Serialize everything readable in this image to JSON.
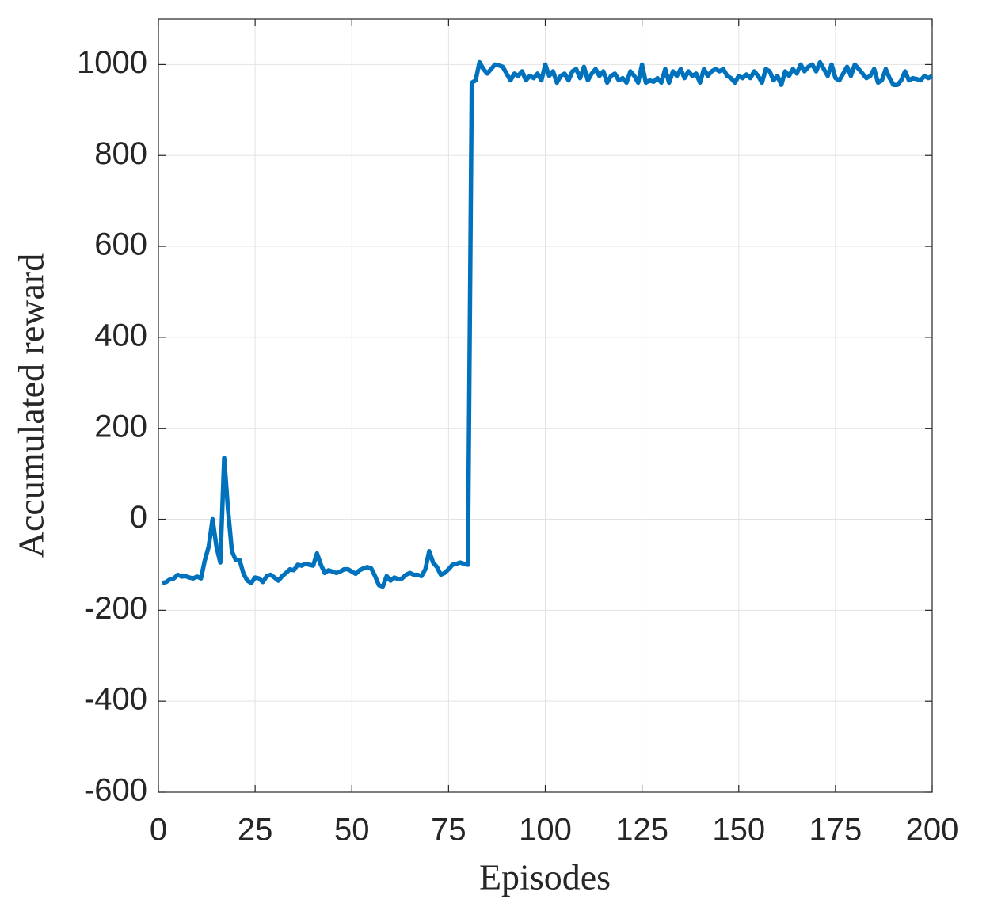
{
  "chart_data": {
    "type": "line",
    "xlabel": "Episodes",
    "ylabel": "Accumulated reward",
    "color": "#0072bd",
    "grid": true,
    "xlim": [
      0,
      200
    ],
    "xticks": [
      0,
      25,
      50,
      75,
      100,
      125,
      150,
      175,
      200
    ],
    "ylim": [
      -600,
      1100
    ],
    "yticks": [
      -600,
      -400,
      -200,
      0,
      200,
      400,
      600,
      800,
      1000
    ],
    "x": [
      1,
      2,
      3,
      4,
      5,
      6,
      7,
      8,
      9,
      10,
      11,
      12,
      13,
      14,
      15,
      16,
      17,
      18,
      19,
      20,
      21,
      22,
      23,
      24,
      25,
      26,
      27,
      28,
      29,
      30,
      31,
      32,
      33,
      34,
      35,
      36,
      37,
      38,
      39,
      40,
      41,
      42,
      43,
      44,
      45,
      46,
      47,
      48,
      49,
      50,
      51,
      52,
      53,
      54,
      55,
      56,
      57,
      58,
      59,
      60,
      61,
      62,
      63,
      64,
      65,
      66,
      67,
      68,
      69,
      70,
      71,
      72,
      73,
      74,
      75,
      76,
      77,
      78,
      79,
      80,
      81,
      82,
      83,
      84,
      85,
      86,
      87,
      88,
      89,
      90,
      91,
      92,
      93,
      94,
      95,
      96,
      97,
      98,
      99,
      100,
      101,
      102,
      103,
      104,
      105,
      106,
      107,
      108,
      109,
      110,
      111,
      112,
      113,
      114,
      115,
      116,
      117,
      118,
      119,
      120,
      121,
      122,
      123,
      124,
      125,
      126,
      127,
      128,
      129,
      130,
      131,
      132,
      133,
      134,
      135,
      136,
      137,
      138,
      139,
      140,
      141,
      142,
      143,
      144,
      145,
      146,
      147,
      148,
      149,
      150,
      151,
      152,
      153,
      154,
      155,
      156,
      157,
      158,
      159,
      160,
      161,
      162,
      163,
      164,
      165,
      166,
      167,
      168,
      169,
      170,
      171,
      172,
      173,
      174,
      175,
      176,
      177,
      178,
      179,
      180,
      181,
      182,
      183,
      184,
      185,
      186,
      187,
      188,
      189,
      190,
      191,
      192,
      193,
      194,
      195,
      196,
      197,
      198,
      199,
      200
    ],
    "values": [
      -140,
      -138,
      -132,
      -130,
      -122,
      -126,
      -125,
      -128,
      -130,
      -126,
      -130,
      -90,
      -60,
      0,
      -60,
      -95,
      135,
      20,
      -70,
      -90,
      -90,
      -120,
      -135,
      -140,
      -128,
      -130,
      -138,
      -125,
      -122,
      -128,
      -135,
      -125,
      -118,
      -110,
      -112,
      -100,
      -102,
      -98,
      -100,
      -102,
      -75,
      -100,
      -118,
      -112,
      -115,
      -118,
      -115,
      -110,
      -110,
      -115,
      -120,
      -112,
      -108,
      -105,
      -108,
      -125,
      -145,
      -148,
      -125,
      -135,
      -128,
      -132,
      -130,
      -122,
      -118,
      -122,
      -122,
      -125,
      -110,
      -70,
      -95,
      -105,
      -122,
      -118,
      -110,
      -100,
      -98,
      -95,
      -98,
      -100,
      960,
      965,
      1005,
      990,
      980,
      990,
      1000,
      998,
      995,
      980,
      965,
      980,
      975,
      985,
      965,
      975,
      970,
      980,
      965,
      1000,
      975,
      985,
      960,
      975,
      980,
      965,
      985,
      990,
      970,
      995,
      965,
      980,
      990,
      975,
      985,
      960,
      975,
      980,
      965,
      970,
      960,
      985,
      975,
      960,
      1000,
      960,
      965,
      962,
      970,
      960,
      990,
      960,
      985,
      975,
      990,
      970,
      985,
      975,
      980,
      960,
      990,
      975,
      985,
      990,
      985,
      990,
      975,
      970,
      960,
      975,
      970,
      978,
      970,
      985,
      975,
      960,
      990,
      985,
      965,
      975,
      955,
      985,
      975,
      990,
      980,
      1000,
      985,
      995,
      1000,
      985,
      1005,
      990,
      975,
      1000,
      970,
      965,
      980,
      995,
      975,
      1000,
      990,
      980,
      970,
      975,
      990,
      960,
      965,
      990,
      970,
      955,
      955,
      965,
      985,
      965,
      970,
      968,
      965,
      975,
      970,
      975
    ]
  }
}
